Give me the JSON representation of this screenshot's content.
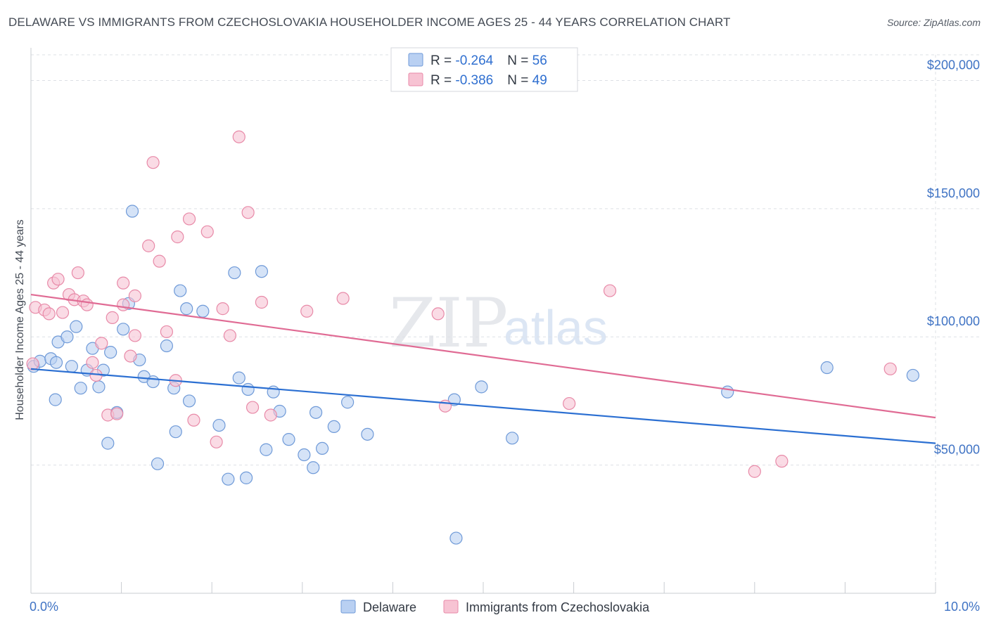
{
  "title": "DELAWARE VS IMMIGRANTS FROM CZECHOSLOVAKIA HOUSEHOLDER INCOME AGES 25 - 44 YEARS CORRELATION CHART",
  "source": "Source: ZipAtlas.com",
  "watermark": {
    "zip": "ZIP",
    "atlas": "atlas"
  },
  "colors": {
    "blue_fill": "#b9d0f2",
    "blue_stroke": "#6f9ad8",
    "blue_line": "#2b6fd2",
    "pink_fill": "#f7c3d3",
    "pink_stroke": "#e88aa8",
    "pink_line": "#e06b94",
    "grid": "#dde0e5",
    "tick_text": "#3f73c4"
  },
  "legend": {
    "rows": [
      {
        "r_label": "R = ",
        "r_value": "-0.264",
        "n_label": "N = ",
        "n_value": "56"
      },
      {
        "r_label": "R = ",
        "r_value": "-0.386",
        "n_label": "N = ",
        "n_value": "49"
      }
    ]
  },
  "chart_data": {
    "type": "scatter",
    "title": "DELAWARE VS IMMIGRANTS FROM CZECHOSLOVAKIA HOUSEHOLDER INCOME AGES 25 - 44 YEARS CORRELATION CHART",
    "xlabel": "",
    "ylabel": "Householder Income Ages 25 - 44 years",
    "xlim": [
      0,
      10
    ],
    "ylim": [
      0,
      210000
    ],
    "x_tick_labels": [
      "0.0%",
      "10.0%"
    ],
    "y_ticks": [
      50000,
      100000,
      150000,
      200000
    ],
    "y_tick_labels": [
      "$50,000",
      "$100,000",
      "$150,000",
      "$200,000"
    ],
    "grid": true,
    "legend_position": "top-center",
    "series": [
      {
        "name": "Delaware",
        "trend": {
          "x0": 0,
          "y0": 87500,
          "x1": 10,
          "y1": 58500
        },
        "points": [
          [
            0.03,
            88500
          ],
          [
            0.1,
            90500
          ],
          [
            0.22,
            91500
          ],
          [
            0.28,
            90000
          ],
          [
            0.27,
            75500
          ],
          [
            0.3,
            98000
          ],
          [
            0.4,
            100000
          ],
          [
            0.45,
            88500
          ],
          [
            0.5,
            104000
          ],
          [
            0.55,
            80000
          ],
          [
            0.62,
            87000
          ],
          [
            0.68,
            95500
          ],
          [
            0.75,
            80500
          ],
          [
            0.8,
            87000
          ],
          [
            0.85,
            58500
          ],
          [
            0.88,
            94000
          ],
          [
            0.95,
            70500
          ],
          [
            1.02,
            103000
          ],
          [
            1.08,
            113000
          ],
          [
            1.12,
            149000
          ],
          [
            1.2,
            91000
          ],
          [
            1.25,
            84500
          ],
          [
            1.35,
            82500
          ],
          [
            1.4,
            50500
          ],
          [
            1.5,
            96500
          ],
          [
            1.58,
            80000
          ],
          [
            1.6,
            63000
          ],
          [
            1.65,
            118000
          ],
          [
            1.72,
            111000
          ],
          [
            1.75,
            75000
          ],
          [
            1.9,
            110000
          ],
          [
            2.08,
            65500
          ],
          [
            2.18,
            44500
          ],
          [
            2.25,
            125000
          ],
          [
            2.3,
            84000
          ],
          [
            2.38,
            45000
          ],
          [
            2.55,
            125500
          ],
          [
            2.4,
            79500
          ],
          [
            2.6,
            56000
          ],
          [
            2.68,
            78500
          ],
          [
            2.75,
            71000
          ],
          [
            2.85,
            60000
          ],
          [
            3.02,
            54000
          ],
          [
            3.12,
            49000
          ],
          [
            3.15,
            70500
          ],
          [
            3.22,
            56500
          ],
          [
            3.35,
            65000
          ],
          [
            3.5,
            74500
          ],
          [
            3.72,
            62000
          ],
          [
            4.68,
            75500
          ],
          [
            4.7,
            21500
          ],
          [
            4.98,
            80500
          ],
          [
            5.32,
            60500
          ],
          [
            7.7,
            78500
          ],
          [
            8.8,
            88000
          ],
          [
            9.75,
            85000
          ]
        ]
      },
      {
        "name": "Immigrants from Czechoslovakia",
        "trend": {
          "x0": 0,
          "y0": 116500,
          "x1": 10,
          "y1": 68500
        },
        "points": [
          [
            0.05,
            111500
          ],
          [
            0.15,
            110500
          ],
          [
            0.2,
            109000
          ],
          [
            0.25,
            121000
          ],
          [
            0.3,
            122500
          ],
          [
            0.35,
            109500
          ],
          [
            0.42,
            116500
          ],
          [
            0.48,
            114500
          ],
          [
            0.52,
            125000
          ],
          [
            0.58,
            114000
          ],
          [
            0.62,
            112500
          ],
          [
            0.68,
            90000
          ],
          [
            0.72,
            85000
          ],
          [
            0.78,
            97500
          ],
          [
            0.85,
            69500
          ],
          [
            0.9,
            107500
          ],
          [
            0.95,
            70000
          ],
          [
            1.02,
            112500
          ],
          [
            1.02,
            121000
          ],
          [
            1.1,
            92500
          ],
          [
            1.15,
            116000
          ],
          [
            1.15,
            100500
          ],
          [
            1.3,
            135500
          ],
          [
            1.35,
            168000
          ],
          [
            1.42,
            129500
          ],
          [
            1.5,
            102000
          ],
          [
            1.6,
            83000
          ],
          [
            1.62,
            139000
          ],
          [
            1.75,
            146000
          ],
          [
            1.8,
            67500
          ],
          [
            1.95,
            141000
          ],
          [
            2.05,
            59000
          ],
          [
            2.12,
            111000
          ],
          [
            2.2,
            100500
          ],
          [
            2.3,
            178000
          ],
          [
            2.4,
            148500
          ],
          [
            2.45,
            72500
          ],
          [
            2.55,
            113500
          ],
          [
            2.65,
            69500
          ],
          [
            3.05,
            110000
          ],
          [
            3.45,
            115000
          ],
          [
            4.5,
            109000
          ],
          [
            4.58,
            73000
          ],
          [
            5.95,
            74000
          ],
          [
            6.4,
            118000
          ],
          [
            8.0,
            47500
          ],
          [
            8.3,
            51500
          ],
          [
            9.5,
            87500
          ],
          [
            0.02,
            89500
          ]
        ]
      }
    ]
  }
}
